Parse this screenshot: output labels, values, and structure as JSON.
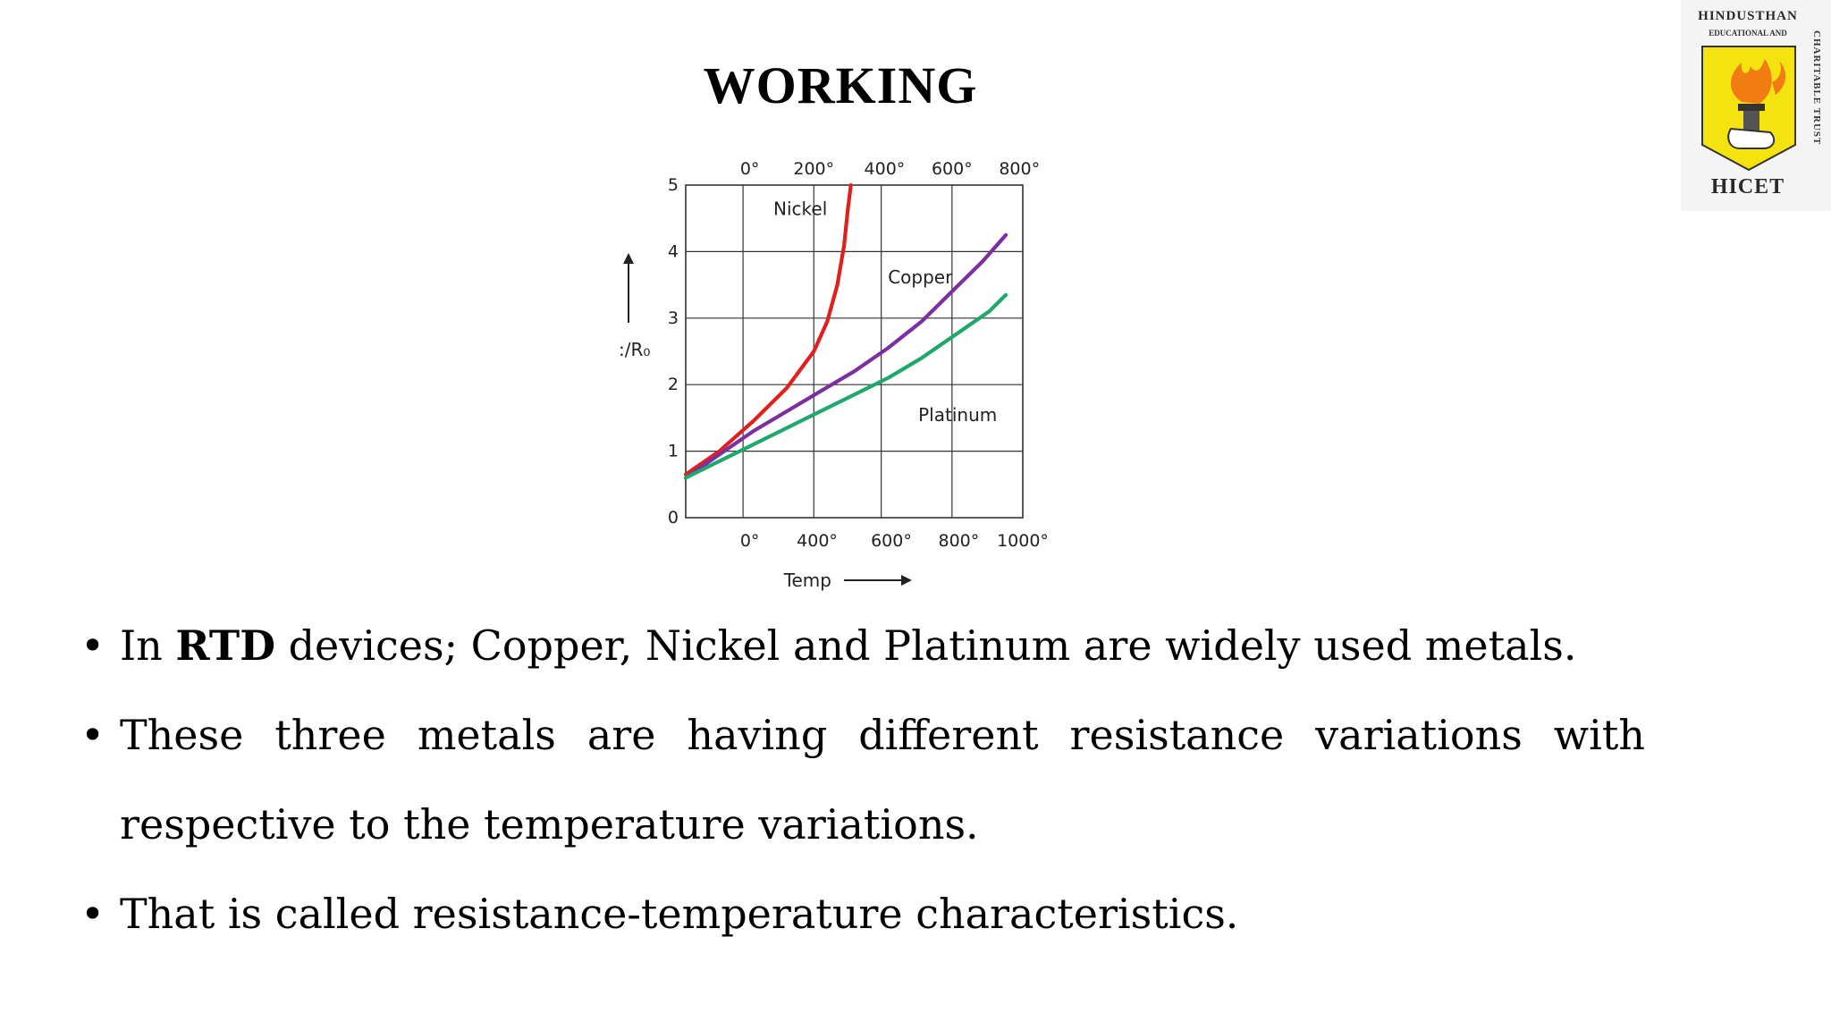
{
  "slide": {
    "title": "WORKING"
  },
  "logo": {
    "top_text": "HINDUSTHAN",
    "sub_text": "EDUCATIONAL AND",
    "side_text": "CHARITABLE TRUST",
    "bottom_text": "HICET",
    "colors": {
      "field": "#f5e30f",
      "flame": "#f07c12",
      "background": "#f4f4f4"
    }
  },
  "bullets": [
    {
      "pre": "In ",
      "bold": "RTD",
      "post": " devices; Copper, Nickel and Platinum are widely used metals."
    },
    {
      "line1": "These three metals are having different resistance variations with",
      "line2": "respective to the temperature variations."
    },
    {
      "text": "That is called resistance-temperature characteristics."
    }
  ],
  "bullet_glyph": "•",
  "chart_data": {
    "type": "line",
    "ylabel": ":/R₀",
    "xlabel": "Temp",
    "y_ticks": [
      "0",
      "1",
      "2",
      "3",
      "4",
      "5"
    ],
    "top_ticks": [
      "0°",
      "200°",
      "400°",
      "600°",
      "800°"
    ],
    "bottom_ticks": [
      "0°",
      "400°",
      "600°",
      "800°",
      "1000°"
    ],
    "ylim": [
      0,
      5
    ],
    "grid": true,
    "series": [
      {
        "name": "Nickel",
        "color": "#e0201e",
        "points": [
          [
            0.0,
            0.65
          ],
          [
            0.1,
            1.0
          ],
          [
            0.2,
            1.45
          ],
          [
            0.3,
            1.95
          ],
          [
            0.38,
            2.5
          ],
          [
            0.42,
            2.95
          ],
          [
            0.45,
            3.5
          ],
          [
            0.47,
            4.1
          ],
          [
            0.48,
            4.6
          ],
          [
            0.49,
            5.0
          ]
        ]
      },
      {
        "name": "Copper",
        "color": "#7b2fa0",
        "points": [
          [
            0.0,
            0.6
          ],
          [
            0.1,
            0.95
          ],
          [
            0.2,
            1.3
          ],
          [
            0.3,
            1.6
          ],
          [
            0.4,
            1.9
          ],
          [
            0.5,
            2.2
          ],
          [
            0.6,
            2.55
          ],
          [
            0.7,
            2.95
          ],
          [
            0.8,
            3.45
          ],
          [
            0.88,
            3.85
          ],
          [
            0.95,
            4.25
          ]
        ]
      },
      {
        "name": "Platinum",
        "color": "#1fa86a",
        "points": [
          [
            0.0,
            0.6
          ],
          [
            0.1,
            0.85
          ],
          [
            0.2,
            1.1
          ],
          [
            0.3,
            1.35
          ],
          [
            0.4,
            1.6
          ],
          [
            0.5,
            1.85
          ],
          [
            0.6,
            2.1
          ],
          [
            0.7,
            2.4
          ],
          [
            0.8,
            2.75
          ],
          [
            0.9,
            3.1
          ],
          [
            0.95,
            3.35
          ]
        ]
      }
    ]
  }
}
